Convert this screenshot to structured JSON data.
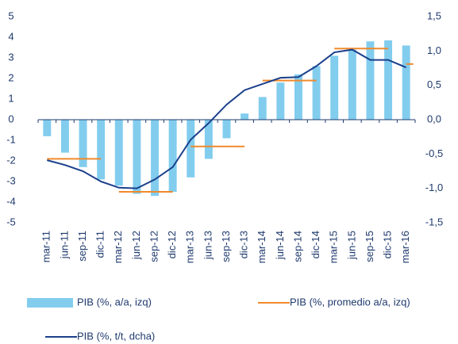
{
  "chart_data": {
    "type": "bar",
    "categories": [
      "mar-11",
      "jun-11",
      "sep-11",
      "dic-11",
      "mar-12",
      "jun-12",
      "sep-12",
      "dic-12",
      "mar-13",
      "jun-13",
      "sep-13",
      "dic-13",
      "mar-14",
      "jun-14",
      "sep-14",
      "dic-14",
      "mar-15",
      "jun-15",
      "sep-15",
      "dic-15",
      "mar-16"
    ],
    "series": [
      {
        "name": "PIB (%, a/a, izq)",
        "type": "bar",
        "color": "#82cdee",
        "values": [
          -0.8,
          -1.6,
          -2.3,
          -2.9,
          -3.2,
          -3.6,
          -3.7,
          -3.5,
          -2.8,
          -1.9,
          -0.9,
          0.3,
          1.1,
          1.8,
          2.2,
          2.6,
          3.1,
          3.4,
          3.8,
          3.85,
          3.6
        ]
      },
      {
        "name": "PIB (%, promedio a/a, izq)",
        "type": "step",
        "color": "#f0892a",
        "values": [
          -1.9,
          -1.9,
          -1.9,
          -1.9,
          -3.5,
          -3.5,
          -3.5,
          -3.5,
          -1.3,
          -1.3,
          -1.3,
          -1.3,
          1.9,
          1.9,
          1.9,
          1.9,
          3.45,
          3.45,
          3.45,
          3.45,
          2.7
        ]
      },
      {
        "name": "PIB (%, t/t, dcha)",
        "type": "line",
        "color": "#1b3f8b",
        "axis": "y2",
        "values": [
          -0.59,
          -0.66,
          -0.75,
          -0.9,
          -0.99,
          -1.0,
          -0.87,
          -0.69,
          -0.29,
          -0.05,
          0.22,
          0.43,
          0.52,
          0.61,
          0.62,
          0.78,
          0.98,
          1.02,
          0.87,
          0.87,
          0.76
        ]
      }
    ],
    "ylim": [
      -5,
      5
    ],
    "yticks": [
      -5,
      -4,
      -3,
      -2,
      -1,
      0,
      1,
      2,
      3,
      4,
      5
    ],
    "y2lim": [
      -1.5,
      1.5
    ],
    "y2ticks": [
      {
        "value": -1.5,
        "label": "-1,5"
      },
      {
        "value": -1.0,
        "label": "-1,0"
      },
      {
        "value": -0.5,
        "label": "-0,5"
      },
      {
        "value": 0,
        "label": "0,0"
      },
      {
        "value": 0.5,
        "label": "0,5"
      },
      {
        "value": 1.0,
        "label": "1,0"
      },
      {
        "value": 1.5,
        "label": "1,5"
      }
    ],
    "grid": false
  }
}
